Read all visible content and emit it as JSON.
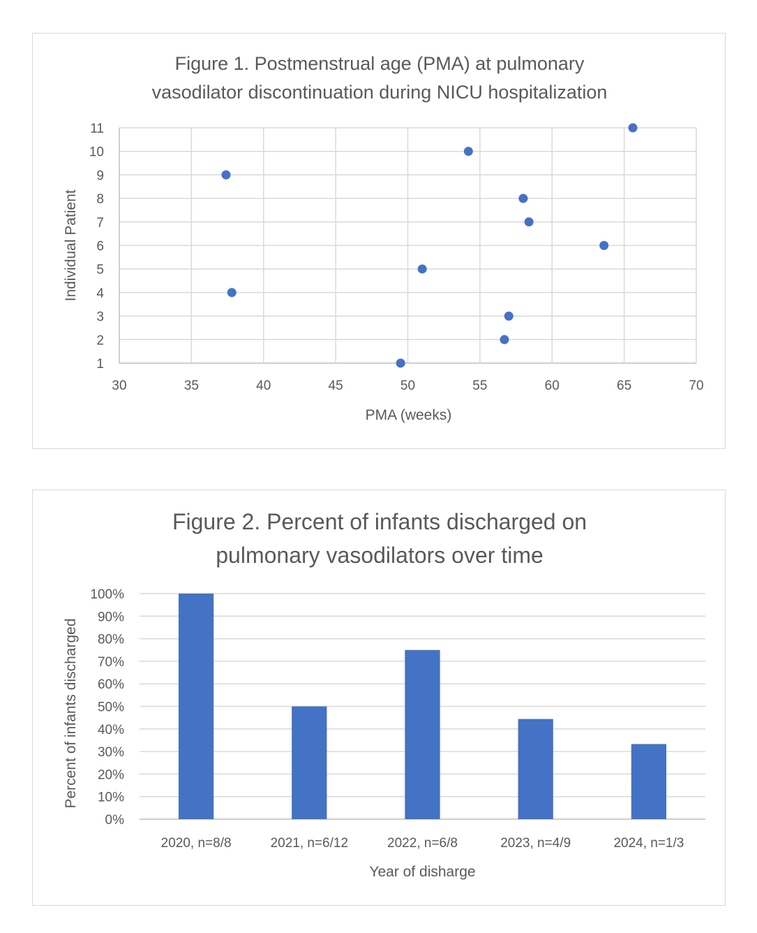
{
  "chart_data": [
    {
      "type": "scatter",
      "title_lines": [
        "Figure 1. Postmenstrual age (PMA) at pulmonary",
        "vasodilator discontinuation  during  NICU hospitalization"
      ],
      "xlabel": "PMA (weeks)",
      "ylabel": "Individual Patient",
      "xlim": [
        30,
        70
      ],
      "ylim": [
        1,
        11
      ],
      "x_ticks": [
        30,
        35,
        40,
        45,
        50,
        55,
        60,
        65,
        70
      ],
      "y_ticks": [
        1,
        2,
        3,
        4,
        5,
        6,
        7,
        8,
        9,
        10,
        11
      ],
      "grid": true,
      "color": "#4472C4",
      "points": [
        {
          "x": 49.5,
          "y": 1
        },
        {
          "x": 56.7,
          "y": 2
        },
        {
          "x": 57.0,
          "y": 3
        },
        {
          "x": 37.8,
          "y": 4
        },
        {
          "x": 51.0,
          "y": 5
        },
        {
          "x": 63.6,
          "y": 6
        },
        {
          "x": 58.4,
          "y": 7
        },
        {
          "x": 58.0,
          "y": 8
        },
        {
          "x": 37.4,
          "y": 9
        },
        {
          "x": 54.2,
          "y": 10
        },
        {
          "x": 65.6,
          "y": 11
        }
      ]
    },
    {
      "type": "bar",
      "title_lines": [
        "Figure 2. Percent of infants discharged on",
        "pulmonary vasodilators over time"
      ],
      "xlabel": "Year of disharge",
      "ylabel": "Percent of infants discharged",
      "ylim": [
        0,
        100
      ],
      "y_ticks": [
        "0%",
        "10%",
        "20%",
        "30%",
        "40%",
        "50%",
        "60%",
        "70%",
        "80%",
        "90%",
        "100%"
      ],
      "grid": true,
      "color": "#4472C4",
      "categories": [
        "2020, n=8/8",
        "2021, n=6/12",
        "2022, n=6/8",
        "2023, n=4/9",
        "2024, n=1/3"
      ],
      "values": [
        100,
        50,
        75,
        44.4,
        33.3
      ]
    }
  ]
}
